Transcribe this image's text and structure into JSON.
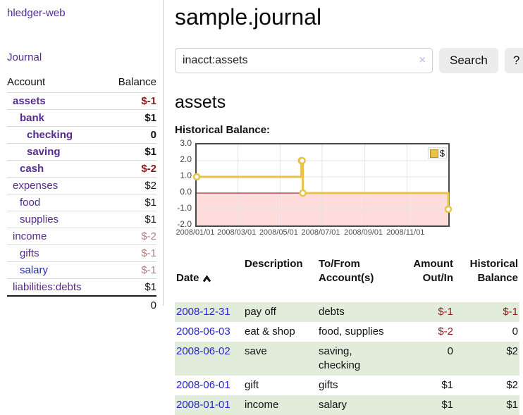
{
  "app": {
    "title": "hledger-web"
  },
  "sidebar": {
    "journal_link": "Journal",
    "accounts_table": {
      "headers": {
        "account": "Account",
        "balance": "Balance"
      },
      "rows": [
        {
          "name": "assets",
          "indent": 0,
          "bold": true,
          "link_color": "purple",
          "balance": "$-1",
          "balance_style": "negative-strong"
        },
        {
          "name": "bank",
          "indent": 1,
          "bold": true,
          "link_color": "purple",
          "balance": "$1",
          "balance_style": "strong"
        },
        {
          "name": "checking",
          "indent": 2,
          "bold": true,
          "link_color": "purple",
          "balance": "0",
          "balance_style": "strong"
        },
        {
          "name": "saving",
          "indent": 2,
          "bold": true,
          "link_color": "purple",
          "balance": "$1",
          "balance_style": "strong"
        },
        {
          "name": "cash",
          "indent": 1,
          "bold": true,
          "link_color": "purple",
          "balance": "$-2",
          "balance_style": "negative-strong"
        },
        {
          "name": "expenses",
          "indent": 0,
          "bold": false,
          "link_color": "purple",
          "balance": "$2",
          "balance_style": "normal"
        },
        {
          "name": "food",
          "indent": 1,
          "bold": false,
          "link_color": "purple",
          "balance": "$1",
          "balance_style": "normal"
        },
        {
          "name": "supplies",
          "indent": 1,
          "bold": false,
          "link_color": "purple",
          "balance": "$1",
          "balance_style": "normal"
        },
        {
          "name": "income",
          "indent": 0,
          "bold": false,
          "link_color": "purple",
          "balance": "$-2",
          "balance_style": "negative-muted"
        },
        {
          "name": "gifts",
          "indent": 1,
          "bold": false,
          "link_color": "purple",
          "balance": "$-1",
          "balance_style": "negative-muted"
        },
        {
          "name": "salary",
          "indent": 1,
          "bold": false,
          "link_color": "blue",
          "balance": "$-1",
          "balance_style": "negative-muted"
        },
        {
          "name": "liabilities:debts",
          "indent": 0,
          "bold": false,
          "link_color": "purple",
          "balance": "$1",
          "balance_style": "normal"
        }
      ],
      "total": "0"
    }
  },
  "main": {
    "title": "sample.journal",
    "search": {
      "value": "inacct:assets",
      "clear_icon": "×",
      "button_label": "Search",
      "help_label": "?"
    },
    "section_title": "assets",
    "chart_label": "Historical Balance:"
  },
  "chart_data": {
    "type": "line",
    "style": "step-after",
    "title": "Historical Balance",
    "series": [
      {
        "name": "$",
        "points": [
          [
            "2008/01/01",
            1
          ],
          [
            "2008/06/01",
            2
          ],
          [
            "2008/06/02",
            2
          ],
          [
            "2008/06/03",
            0
          ],
          [
            "2008/12/31",
            -1
          ]
        ]
      }
    ],
    "yticks": [
      "3.0",
      "2.0",
      "1.0",
      "0.0",
      "-1.0",
      "-2.0"
    ],
    "xticks": [
      "2008/01/01",
      "2008/03/01",
      "2008/05/01",
      "2008/07/01",
      "2008/09/01",
      "2008/11/01"
    ],
    "ylim": [
      -2,
      3
    ],
    "xlim": [
      "2008/01/01",
      "2008/12/31"
    ],
    "grid": true,
    "legend": {
      "label": "$",
      "position": "top-right"
    },
    "colors": {
      "line": "#e9c24a",
      "marker_fill": "#ffffff",
      "negative_region": "#ffdddd",
      "zero_line": "#990000",
      "grid": "#e3e3e3"
    }
  },
  "register_table": {
    "headers": {
      "date": "Date",
      "description": "Description",
      "accounts": "To/From\nAccount(s)",
      "amount": "Amount\nOut/In",
      "balance": "Historical\nBalance"
    },
    "sort_icon": "caret-up",
    "rows": [
      {
        "date": "2008-12-31",
        "description": "pay off",
        "accounts": "debts",
        "amount": "$-1",
        "amount_negative": true,
        "balance": "$-1",
        "balance_negative": true,
        "highlight": true
      },
      {
        "date": "2008-06-03",
        "description": "eat & shop",
        "accounts": "food, supplies",
        "amount": "$-2",
        "amount_negative": true,
        "balance": "0",
        "balance_negative": false,
        "highlight": false
      },
      {
        "date": "2008-06-02",
        "description": "save",
        "accounts": "saving,\nchecking",
        "amount": "0",
        "amount_negative": false,
        "balance": "$2",
        "balance_negative": false,
        "highlight": true
      },
      {
        "date": "2008-06-01",
        "description": "gift",
        "accounts": "gifts",
        "amount": "$1",
        "amount_negative": false,
        "balance": "$2",
        "balance_negative": false,
        "highlight": false
      },
      {
        "date": "2008-01-01",
        "description": "income",
        "accounts": "salary",
        "amount": "$1",
        "amount_negative": false,
        "balance": "$1",
        "balance_negative": false,
        "highlight": true
      }
    ]
  },
  "colors": {
    "link_purple": "#552a90",
    "link_blue": "#2525cc",
    "negative_strong": "#8b1a1a",
    "negative_muted": "#b28080",
    "row_highlight": "#e1ecdb",
    "divider": "#cccccc",
    "chart_line": "#e9c24a"
  }
}
